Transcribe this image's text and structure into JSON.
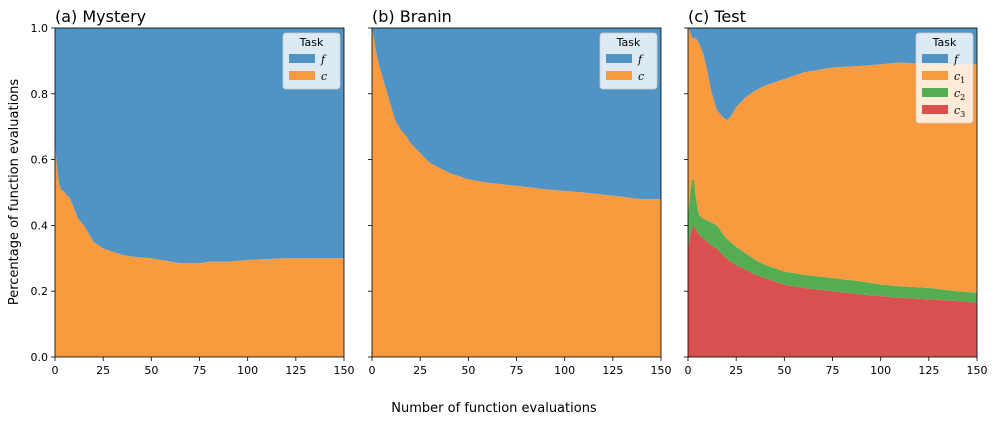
{
  "figure": {
    "xlabel": "Number of function evaluations",
    "ylabel": "Percentage of function evaluations",
    "colors": {
      "f": "#4f94c4",
      "c": "#f99a3f",
      "c1": "#f99a3f",
      "c2": "#55ad52",
      "c3": "#d8504f"
    }
  },
  "chart_data": [
    {
      "type": "area",
      "title": "(a) Mystery",
      "legend_title": "Task",
      "legend_position": "top-right",
      "xlim": [
        0,
        150
      ],
      "ylim": [
        0,
        1
      ],
      "x_ticks": [
        0,
        25,
        50,
        75,
        100,
        125,
        150
      ],
      "y_ticks": [
        0.0,
        0.2,
        0.4,
        0.6,
        0.8,
        1.0
      ],
      "x_tick_labels": [
        "0",
        "25",
        "50",
        "75",
        "100",
        "125",
        "150"
      ],
      "y_tick_labels": [
        "0.0",
        "0.2",
        "0.4",
        "0.6",
        "0.8",
        "1.0"
      ],
      "x": [
        0,
        1,
        2,
        3,
        5,
        8,
        10,
        12,
        15,
        18,
        20,
        25,
        30,
        35,
        40,
        50,
        60,
        65,
        70,
        75,
        80,
        90,
        100,
        110,
        120,
        130,
        140,
        150
      ],
      "series": [
        {
          "name": "c",
          "label": "c",
          "sub": "",
          "color": "#f99a3f",
          "values": [
            0.65,
            0.58,
            0.53,
            0.51,
            0.5,
            0.48,
            0.45,
            0.42,
            0.4,
            0.37,
            0.35,
            0.33,
            0.32,
            0.31,
            0.305,
            0.3,
            0.29,
            0.285,
            0.285,
            0.285,
            0.29,
            0.29,
            0.295,
            0.298,
            0.3,
            0.3,
            0.3,
            0.3
          ]
        },
        {
          "name": "f",
          "label": "f",
          "sub": "",
          "color": "#4f94c4",
          "values": [
            0.35,
            0.42,
            0.47,
            0.49,
            0.5,
            0.52,
            0.55,
            0.58,
            0.6,
            0.63,
            0.65,
            0.67,
            0.68,
            0.69,
            0.695,
            0.7,
            0.71,
            0.715,
            0.715,
            0.715,
            0.71,
            0.71,
            0.705,
            0.702,
            0.7,
            0.7,
            0.7,
            0.7
          ]
        }
      ]
    },
    {
      "type": "area",
      "title": "(b) Branin",
      "legend_title": "Task",
      "legend_position": "top-right",
      "xlim": [
        0,
        150
      ],
      "ylim": [
        0,
        1
      ],
      "x_ticks": [
        0,
        25,
        50,
        75,
        100,
        125,
        150
      ],
      "y_ticks": [
        0.0,
        0.2,
        0.4,
        0.6,
        0.8,
        1.0
      ],
      "x_tick_labels": [
        "0",
        "25",
        "50",
        "75",
        "100",
        "125",
        "150"
      ],
      "y_tick_labels": [],
      "x": [
        0,
        1,
        2,
        4,
        6,
        8,
        10,
        12,
        15,
        18,
        20,
        25,
        30,
        40,
        50,
        60,
        75,
        90,
        100,
        110,
        125,
        140,
        150
      ],
      "series": [
        {
          "name": "c",
          "label": "c",
          "sub": "",
          "color": "#f99a3f",
          "values": [
            1.0,
            0.97,
            0.93,
            0.88,
            0.84,
            0.8,
            0.76,
            0.72,
            0.69,
            0.67,
            0.65,
            0.62,
            0.59,
            0.56,
            0.54,
            0.53,
            0.52,
            0.51,
            0.505,
            0.5,
            0.49,
            0.48,
            0.48
          ]
        },
        {
          "name": "f",
          "label": "f",
          "sub": "",
          "color": "#4f94c4",
          "values": [
            0.0,
            0.03,
            0.07,
            0.12,
            0.16,
            0.2,
            0.24,
            0.28,
            0.31,
            0.33,
            0.35,
            0.38,
            0.41,
            0.44,
            0.46,
            0.47,
            0.48,
            0.49,
            0.495,
            0.5,
            0.51,
            0.52,
            0.52
          ]
        }
      ]
    },
    {
      "type": "area",
      "title": "(c) Test",
      "legend_title": "Task",
      "legend_position": "top-right",
      "xlim": [
        0,
        150
      ],
      "ylim": [
        0,
        1
      ],
      "x_ticks": [
        0,
        25,
        50,
        75,
        100,
        125,
        150
      ],
      "y_ticks": [
        0.0,
        0.2,
        0.4,
        0.6,
        0.8,
        1.0
      ],
      "x_tick_labels": [
        "0",
        "25",
        "50",
        "75",
        "100",
        "125",
        "150"
      ],
      "y_tick_labels": [],
      "x": [
        0,
        1,
        2,
        3,
        4,
        5,
        6,
        8,
        10,
        12,
        15,
        18,
        20,
        22,
        25,
        30,
        35,
        40,
        50,
        60,
        75,
        90,
        100,
        110,
        125,
        140,
        150
      ],
      "series": [
        {
          "name": "c3",
          "label": "c",
          "sub": "3",
          "color": "#d8504f",
          "values": [
            0.33,
            0.37,
            0.39,
            0.4,
            0.39,
            0.38,
            0.37,
            0.36,
            0.35,
            0.34,
            0.33,
            0.31,
            0.3,
            0.29,
            0.28,
            0.265,
            0.25,
            0.24,
            0.22,
            0.21,
            0.2,
            0.19,
            0.185,
            0.18,
            0.175,
            0.17,
            0.165
          ]
        },
        {
          "name": "c2",
          "label": "c",
          "sub": "2",
          "color": "#55ad52",
          "values": [
            0.1,
            0.12,
            0.15,
            0.14,
            0.1,
            0.07,
            0.06,
            0.06,
            0.065,
            0.07,
            0.07,
            0.065,
            0.06,
            0.06,
            0.055,
            0.05,
            0.045,
            0.04,
            0.04,
            0.04,
            0.04,
            0.04,
            0.035,
            0.035,
            0.035,
            0.03,
            0.03
          ]
        },
        {
          "name": "c1",
          "label": "c",
          "sub": "1",
          "color": "#f99a3f",
          "values": [
            0.57,
            0.5,
            0.43,
            0.43,
            0.48,
            0.51,
            0.52,
            0.5,
            0.455,
            0.4,
            0.35,
            0.355,
            0.36,
            0.38,
            0.425,
            0.475,
            0.515,
            0.545,
            0.585,
            0.615,
            0.64,
            0.655,
            0.67,
            0.68,
            0.68,
            0.69,
            0.695
          ]
        },
        {
          "name": "f",
          "label": "f",
          "sub": "",
          "color": "#4f94c4",
          "values": [
            0.0,
            0.01,
            0.03,
            0.03,
            0.03,
            0.04,
            0.05,
            0.08,
            0.13,
            0.19,
            0.25,
            0.27,
            0.28,
            0.27,
            0.24,
            0.21,
            0.19,
            0.175,
            0.155,
            0.135,
            0.12,
            0.115,
            0.11,
            0.105,
            0.11,
            0.11,
            0.11
          ]
        }
      ]
    }
  ]
}
